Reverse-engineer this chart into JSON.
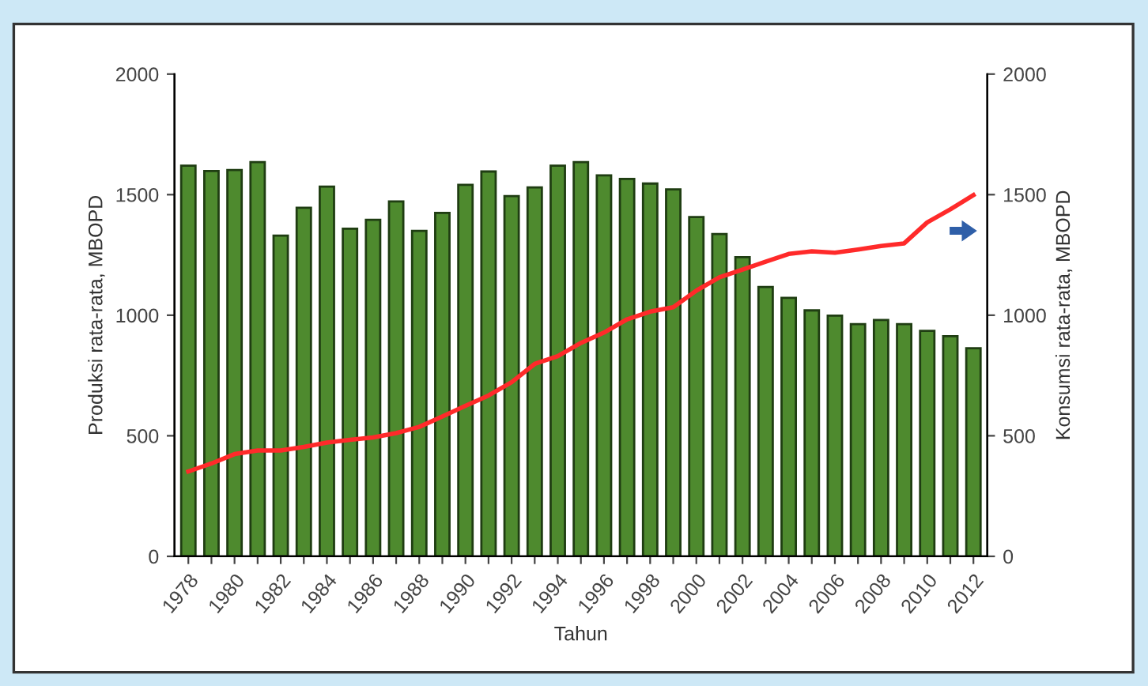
{
  "chart_data": {
    "type": "bar",
    "xlabel": "Tahun",
    "ylabel": "Produksi rata-rata, MBOPD",
    "y2label": "Konsumsi rata-rata, MBOPD",
    "categories": [
      "1978",
      null,
      "1980",
      null,
      "1982",
      null,
      "1984",
      null,
      "1986",
      null,
      "1988",
      null,
      "1990",
      null,
      "1992",
      null,
      "1994",
      null,
      "1996",
      null,
      "1998",
      null,
      "2000",
      null,
      "2002",
      null,
      "2004",
      null,
      "2006",
      null,
      "2008",
      null,
      "2010",
      null,
      "2012"
    ],
    "series": [
      {
        "color": "#4e8a2e",
        "values": [
          1620,
          1598,
          1602,
          1635,
          1330,
          1446,
          1533,
          1359,
          1396,
          1472,
          1350,
          1424,
          1541,
          1596,
          1494,
          1530,
          1620,
          1635,
          1580,
          1565,
          1546,
          1522,
          1407,
          1337,
          1241,
          1117,
          1072,
          1020,
          998,
          963,
          980,
          963,
          935,
          913,
          863
        ]
      },
      {
        "type": "line",
        "axis": "y2",
        "color": "#ff2a2a",
        "values": [
          352,
          385,
          424,
          439,
          439,
          454,
          472,
          483,
          493,
          511,
          537,
          580,
          624,
          667,
          722,
          798,
          830,
          885,
          928,
          983,
          1015,
          1033,
          1102,
          1157,
          1189,
          1222,
          1254,
          1265,
          1259,
          1272,
          1287,
          1298,
          1385,
          1439,
          1498
        ]
      }
    ],
    "ylim": [
      0,
      2000
    ],
    "yticks": [
      0,
      500,
      1000,
      1500,
      2000
    ],
    "y2lim": [
      0,
      2000
    ],
    "y2ticks": [
      0,
      500,
      1000,
      1500,
      2000
    ],
    "grid": false,
    "legend": false,
    "marker": "none",
    "line_style": "solid"
  }
}
